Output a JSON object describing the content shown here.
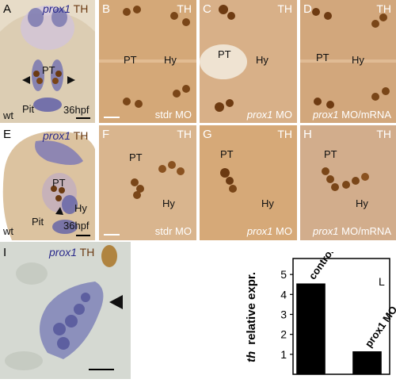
{
  "panels": {
    "A": {
      "letter": "A",
      "gene": "prox1",
      "marker": "TH",
      "labels": {
        "pt": "PT",
        "pit": "Pit",
        "wt": "wt",
        "stage": "36hpf"
      }
    },
    "B": {
      "letter": "B",
      "marker": "TH",
      "labels": {
        "pt": "PT",
        "hy": "Hy"
      },
      "condition": "stdr MO"
    },
    "C": {
      "letter": "C",
      "marker": "TH",
      "labels": {
        "pt": "PT",
        "hy": "Hy"
      },
      "condition_gene": "prox1",
      "condition_rest": "MO"
    },
    "D": {
      "letter": "D",
      "marker": "TH",
      "labels": {
        "pt": "PT",
        "hy": "Hy"
      },
      "condition_gene": "prox1",
      "condition_rest": "MO/mRNA"
    },
    "E": {
      "letter": "E",
      "gene": "prox1",
      "marker": "TH",
      "labels": {
        "pt": "PT",
        "hy": "Hy",
        "pit": "Pit",
        "wt": "wt",
        "stage": "36hpf"
      }
    },
    "F": {
      "letter": "F",
      "marker": "TH",
      "labels": {
        "pt": "PT",
        "hy": "Hy"
      },
      "condition": "stdr MO"
    },
    "G": {
      "letter": "G",
      "marker": "TH",
      "labels": {
        "pt": "PT",
        "hy": "Hy"
      },
      "condition_gene": "prox1",
      "condition_rest": "MO"
    },
    "H": {
      "letter": "H",
      "marker": "TH",
      "labels": {
        "pt": "PT",
        "hy": "Hy"
      },
      "condition_gene": "prox1",
      "condition_rest": "MO/mRNA"
    },
    "I": {
      "letter": "I",
      "gene": "prox1",
      "marker": "TH"
    }
  },
  "chart_data": {
    "type": "bar",
    "panel_letter": "L",
    "categories": [
      "control",
      "prox1 MO"
    ],
    "values": [
      4.55,
      1.15
    ],
    "ylabel_italic": "th",
    "ylabel_rest": "relative expr.",
    "ylim": [
      0,
      5.8
    ],
    "yticks": [
      "1",
      "2",
      "3",
      "4",
      "5"
    ],
    "bar_color": "#000000",
    "grid": false
  }
}
